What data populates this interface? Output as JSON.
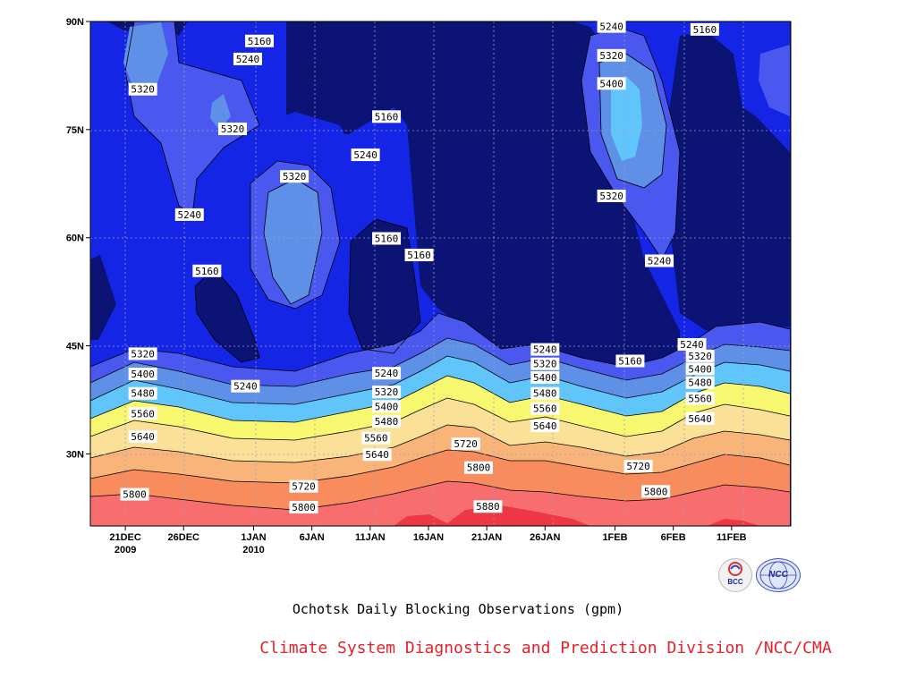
{
  "chart_data": {
    "type": "contour",
    "title": "Ochotsk Daily Blocking Observations (gpm)",
    "credit": "Climate System Diagnostics and Prediction Division /NCC/CMA",
    "units": "gpm",
    "y_axis": {
      "ticks": [
        "30N",
        "45N",
        "60N",
        "75N",
        "90N"
      ],
      "values": [
        30,
        45,
        60,
        75,
        90
      ],
      "range": [
        20,
        90
      ]
    },
    "x_axis": {
      "ticks": [
        {
          "label": "21DEC",
          "sub": "2009"
        },
        {
          "label": "26DEC",
          "sub": ""
        },
        {
          "label": "1JAN",
          "sub": "2010"
        },
        {
          "label": "6JAN",
          "sub": ""
        },
        {
          "label": "11JAN",
          "sub": ""
        },
        {
          "label": "16JAN",
          "sub": ""
        },
        {
          "label": "21JAN",
          "sub": ""
        },
        {
          "label": "26JAN",
          "sub": ""
        },
        {
          "label": "1FEB",
          "sub": ""
        },
        {
          "label": "6FEB",
          "sub": ""
        },
        {
          "label": "11FEB",
          "sub": ""
        }
      ],
      "range": [
        "18DEC2009",
        "16FEB2010"
      ]
    },
    "grid": true,
    "contour_levels": [
      5160,
      5240,
      5320,
      5400,
      5480,
      5560,
      5640,
      5720,
      5800,
      5880
    ],
    "fill_colors": [
      "#0b1475",
      "#1425e6",
      "#4a58f0",
      "#5e90e8",
      "#5fc5fb",
      "#a0f0f8",
      "#f8f870",
      "#fbe098",
      "#f9b47a",
      "#f88c5c",
      "#f86e6e",
      "#ed3745"
    ],
    "contour_labels": [
      {
        "text": "5160",
        "day": 14.5,
        "lat": 87.3
      },
      {
        "text": "5240",
        "day": 13.5,
        "lat": 84.8
      },
      {
        "text": "5320",
        "day": 4.5,
        "lat": 80.6
      },
      {
        "text": "5320",
        "day": 12.2,
        "lat": 75.1
      },
      {
        "text": "5160",
        "day": 25.4,
        "lat": 76.8
      },
      {
        "text": "5240",
        "day": 23.6,
        "lat": 71.5
      },
      {
        "text": "5320",
        "day": 17.5,
        "lat": 68.5
      },
      {
        "text": "5240",
        "day": 8.5,
        "lat": 63.2
      },
      {
        "text": "5160",
        "day": 25.4,
        "lat": 59.9
      },
      {
        "text": "5160",
        "day": 28.2,
        "lat": 57.6
      },
      {
        "text": "5160",
        "day": 10.0,
        "lat": 55.4
      },
      {
        "text": "5240",
        "day": 44.7,
        "lat": 89.3
      },
      {
        "text": "5160",
        "day": 52.7,
        "lat": 88.9
      },
      {
        "text": "5320",
        "day": 44.7,
        "lat": 85.3
      },
      {
        "text": "5400",
        "day": 44.7,
        "lat": 81.4
      },
      {
        "text": "5320",
        "day": 44.7,
        "lat": 65.8
      },
      {
        "text": "5240",
        "day": 48.8,
        "lat": 56.8
      },
      {
        "text": "5240",
        "day": 51.6,
        "lat": 45.2
      },
      {
        "text": "5160",
        "day": 46.3,
        "lat": 42.9
      },
      {
        "text": "5320",
        "day": 52.3,
        "lat": 43.6
      },
      {
        "text": "5400",
        "day": 52.3,
        "lat": 41.8
      },
      {
        "text": "5480",
        "day": 52.3,
        "lat": 39.9
      },
      {
        "text": "5560",
        "day": 52.3,
        "lat": 37.7
      },
      {
        "text": "5640",
        "day": 52.3,
        "lat": 34.9
      },
      {
        "text": "5320",
        "day": 4.5,
        "lat": 43.9
      },
      {
        "text": "5400",
        "day": 4.5,
        "lat": 41.1
      },
      {
        "text": "5480",
        "day": 4.5,
        "lat": 38.4
      },
      {
        "text": "5560",
        "day": 4.5,
        "lat": 35.6
      },
      {
        "text": "5640",
        "day": 4.5,
        "lat": 32.4
      },
      {
        "text": "5800",
        "day": 3.8,
        "lat": 24.4
      },
      {
        "text": "5240",
        "day": 13.3,
        "lat": 39.4
      },
      {
        "text": "5720",
        "day": 18.3,
        "lat": 25.5
      },
      {
        "text": "5800",
        "day": 18.3,
        "lat": 22.6
      },
      {
        "text": "5240",
        "day": 25.4,
        "lat": 41.2
      },
      {
        "text": "5320",
        "day": 25.4,
        "lat": 38.6
      },
      {
        "text": "5400",
        "day": 25.4,
        "lat": 36.6
      },
      {
        "text": "5480",
        "day": 25.4,
        "lat": 34.5
      },
      {
        "text": "5560",
        "day": 24.5,
        "lat": 32.2
      },
      {
        "text": "5640",
        "day": 24.6,
        "lat": 29.9
      },
      {
        "text": "5720",
        "day": 32.2,
        "lat": 31.4
      },
      {
        "text": "5800",
        "day": 33.3,
        "lat": 28.1
      },
      {
        "text": "5880",
        "day": 34.1,
        "lat": 22.7
      },
      {
        "text": "5240",
        "day": 39.0,
        "lat": 44.5
      },
      {
        "text": "5320",
        "day": 39.0,
        "lat": 42.5
      },
      {
        "text": "5400",
        "day": 39.0,
        "lat": 40.6
      },
      {
        "text": "5480",
        "day": 39.0,
        "lat": 38.4
      },
      {
        "text": "5560",
        "day": 39.0,
        "lat": 36.3
      },
      {
        "text": "5640",
        "day": 39.0,
        "lat": 33.9
      },
      {
        "text": "5720",
        "day": 47.0,
        "lat": 28.3
      },
      {
        "text": "5800",
        "day": 48.5,
        "lat": 24.8
      },
      {
        "text": "5560",
        "day": 52.3,
        "lat": 37.7
      }
    ]
  },
  "logos": {
    "bcc_label": "BCC",
    "ncc_label": "NCC"
  }
}
